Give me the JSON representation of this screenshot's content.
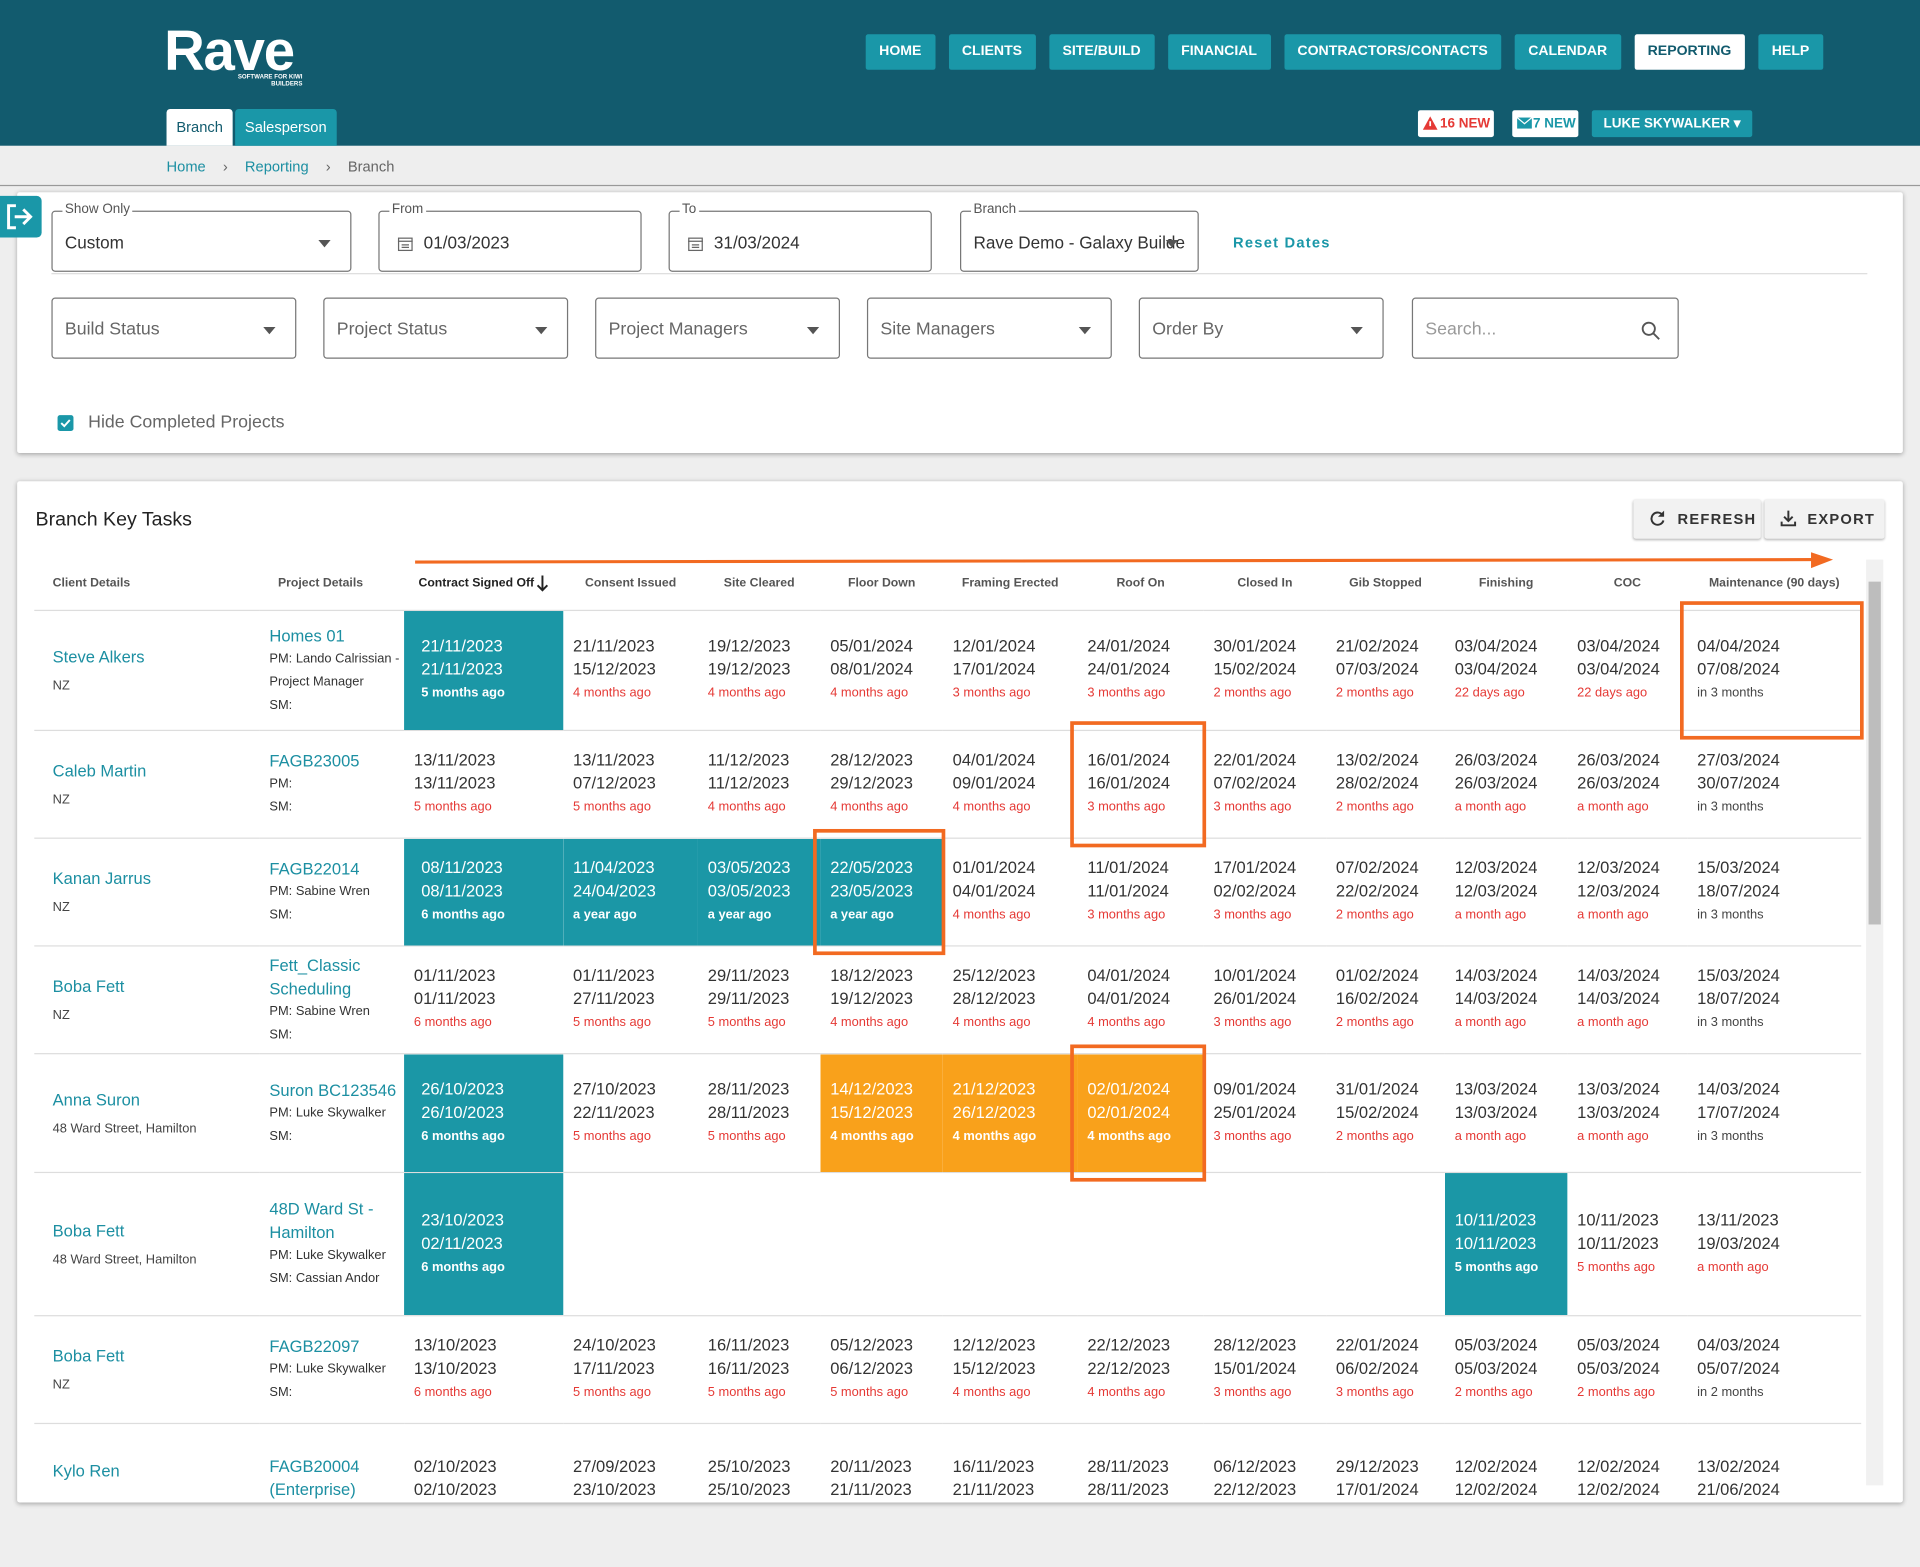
{
  "header": {
    "logo": "Rave",
    "tagline": "SOFTWARE FOR KIWI BUILDERS",
    "nav": [
      "HOME",
      "CLIENTS",
      "SITE/BUILD",
      "FINANCIAL",
      "CONTRACTORS/CONTACTS",
      "CALENDAR",
      "REPORTING",
      "HELP"
    ],
    "active_nav": 6,
    "tabs": [
      "Branch",
      "Salesperson"
    ],
    "active_tab": 0,
    "alerts": "16 NEW",
    "messages": "7 NEW",
    "user": "LUKE SKYWALKER"
  },
  "breadcrumb": [
    "Home",
    "Reporting",
    "Branch"
  ],
  "filters": {
    "show_only": {
      "label": "Show Only",
      "value": "Custom"
    },
    "from": {
      "label": "From",
      "value": "01/03/2023"
    },
    "to": {
      "label": "To",
      "value": "31/03/2024"
    },
    "branch": {
      "label": "Branch",
      "value": "Rave Demo - Galaxy Builde"
    },
    "reset": "Reset Dates",
    "selects": [
      "Build Status",
      "Project Status",
      "Project Managers",
      "Site Managers",
      "Order By"
    ],
    "search": "Search...",
    "hide_completed": "Hide Completed Projects"
  },
  "panel": {
    "title": "Branch Key Tasks",
    "buttons": [
      "REFRESH",
      "EXPORT"
    ]
  },
  "table": {
    "columns": [
      "Client Details",
      "Project Details",
      "Contract Signed Off",
      "Consent Issued",
      "Site Cleared",
      "Floor Down",
      "Framing Erected",
      "Roof On",
      "Closed In",
      "Gib Stopped",
      "Finishing",
      "COC",
      "Maintenance (90 days)"
    ],
    "sorted_column": 2,
    "rows": [
      {
        "client": "Steve Alkers",
        "location": "NZ",
        "project": "Homes 01",
        "details": [
          "PM: Lando Calrissian - Project Manager",
          "SM:"
        ],
        "cells": [
          {
            "dates": [
              "21/11/2023",
              "21/11/2023"
            ],
            "ago": "5 months ago",
            "state": "done"
          },
          {
            "dates": [
              "21/11/2023",
              "15/12/2023"
            ],
            "ago": "4 months ago",
            "state": "late"
          },
          {
            "dates": [
              "19/12/2023",
              "19/12/2023"
            ],
            "ago": "4 months ago",
            "state": "late"
          },
          {
            "dates": [
              "05/01/2024",
              "08/01/2024"
            ],
            "ago": "4 months ago",
            "state": "late"
          },
          {
            "dates": [
              "12/01/2024",
              "17/01/2024"
            ],
            "ago": "3 months ago",
            "state": "late"
          },
          {
            "dates": [
              "24/01/2024",
              "24/01/2024"
            ],
            "ago": "3 months ago",
            "state": "late"
          },
          {
            "dates": [
              "30/01/2024",
              "15/02/2024"
            ],
            "ago": "2 months ago",
            "state": "late"
          },
          {
            "dates": [
              "21/02/2024",
              "07/03/2024"
            ],
            "ago": "2 months ago",
            "state": "late"
          },
          {
            "dates": [
              "03/04/2024",
              "03/04/2024"
            ],
            "ago": "22 days ago",
            "state": "late"
          },
          {
            "dates": [
              "03/04/2024",
              "03/04/2024"
            ],
            "ago": "22 days ago",
            "state": "late"
          },
          {
            "dates": [
              "04/04/2024",
              "07/08/2024"
            ],
            "ago": "in 3 months",
            "state": "future",
            "highlight": true
          }
        ]
      },
      {
        "client": "Caleb Martin",
        "location": "NZ",
        "project": "FAGB23005",
        "details": [
          "PM:",
          "SM:"
        ],
        "cells": [
          {
            "dates": [
              "13/11/2023",
              "13/11/2023"
            ],
            "ago": "5 months ago",
            "state": "late"
          },
          {
            "dates": [
              "13/11/2023",
              "07/12/2023"
            ],
            "ago": "5 months ago",
            "state": "late"
          },
          {
            "dates": [
              "11/12/2023",
              "11/12/2023"
            ],
            "ago": "4 months ago",
            "state": "late"
          },
          {
            "dates": [
              "28/12/2023",
              "29/12/2023"
            ],
            "ago": "4 months ago",
            "state": "late"
          },
          {
            "dates": [
              "04/01/2024",
              "09/01/2024"
            ],
            "ago": "4 months ago",
            "state": "late"
          },
          {
            "dates": [
              "16/01/2024",
              "16/01/2024"
            ],
            "ago": "3 months ago",
            "state": "late",
            "highlight": true
          },
          {
            "dates": [
              "22/01/2024",
              "07/02/2024"
            ],
            "ago": "3 months ago",
            "state": "late"
          },
          {
            "dates": [
              "13/02/2024",
              "28/02/2024"
            ],
            "ago": "2 months ago",
            "state": "late"
          },
          {
            "dates": [
              "26/03/2024",
              "26/03/2024"
            ],
            "ago": "a month ago",
            "state": "late"
          },
          {
            "dates": [
              "26/03/2024",
              "26/03/2024"
            ],
            "ago": "a month ago",
            "state": "late"
          },
          {
            "dates": [
              "27/03/2024",
              "30/07/2024"
            ],
            "ago": "in 3 months",
            "state": "future"
          }
        ]
      },
      {
        "client": "Kanan Jarrus",
        "location": "NZ",
        "project": "FAGB22014",
        "details": [
          "PM: Sabine Wren",
          "SM:"
        ],
        "cells": [
          {
            "dates": [
              "08/11/2023",
              "08/11/2023"
            ],
            "ago": "6 months ago",
            "state": "done"
          },
          {
            "dates": [
              "11/04/2023",
              "24/04/2023"
            ],
            "ago": "a year ago",
            "state": "done"
          },
          {
            "dates": [
              "03/05/2023",
              "03/05/2023"
            ],
            "ago": "a year ago",
            "state": "done"
          },
          {
            "dates": [
              "22/05/2023",
              "23/05/2023"
            ],
            "ago": "a year ago",
            "state": "done",
            "highlight": true
          },
          {
            "dates": [
              "01/01/2024",
              "04/01/2024"
            ],
            "ago": "4 months ago",
            "state": "late"
          },
          {
            "dates": [
              "11/01/2024",
              "11/01/2024"
            ],
            "ago": "3 months ago",
            "state": "late"
          },
          {
            "dates": [
              "17/01/2024",
              "02/02/2024"
            ],
            "ago": "3 months ago",
            "state": "late"
          },
          {
            "dates": [
              "07/02/2024",
              "22/02/2024"
            ],
            "ago": "2 months ago",
            "state": "late"
          },
          {
            "dates": [
              "12/03/2024",
              "12/03/2024"
            ],
            "ago": "a month ago",
            "state": "late"
          },
          {
            "dates": [
              "12/03/2024",
              "12/03/2024"
            ],
            "ago": "a month ago",
            "state": "late"
          },
          {
            "dates": [
              "15/03/2024",
              "18/07/2024"
            ],
            "ago": "in 3 months",
            "state": "future"
          }
        ]
      },
      {
        "client": "Boba Fett",
        "location": "NZ",
        "project": "Fett_Classic Scheduling",
        "details": [
          "PM: Sabine Wren",
          "SM:"
        ],
        "cells": [
          {
            "dates": [
              "01/11/2023",
              "01/11/2023"
            ],
            "ago": "6 months ago",
            "state": "late"
          },
          {
            "dates": [
              "01/11/2023",
              "27/11/2023"
            ],
            "ago": "5 months ago",
            "state": "late"
          },
          {
            "dates": [
              "29/11/2023",
              "29/11/2023"
            ],
            "ago": "5 months ago",
            "state": "late"
          },
          {
            "dates": [
              "18/12/2023",
              "19/12/2023"
            ],
            "ago": "4 months ago",
            "state": "late"
          },
          {
            "dates": [
              "25/12/2023",
              "28/12/2023"
            ],
            "ago": "4 months ago",
            "state": "late"
          },
          {
            "dates": [
              "04/01/2024",
              "04/01/2024"
            ],
            "ago": "4 months ago",
            "state": "late"
          },
          {
            "dates": [
              "10/01/2024",
              "26/01/2024"
            ],
            "ago": "3 months ago",
            "state": "late"
          },
          {
            "dates": [
              "01/02/2024",
              "16/02/2024"
            ],
            "ago": "2 months ago",
            "state": "late"
          },
          {
            "dates": [
              "14/03/2024",
              "14/03/2024"
            ],
            "ago": "a month ago",
            "state": "late"
          },
          {
            "dates": [
              "14/03/2024",
              "14/03/2024"
            ],
            "ago": "a month ago",
            "state": "late"
          },
          {
            "dates": [
              "15/03/2024",
              "18/07/2024"
            ],
            "ago": "in 3 months",
            "state": "future"
          }
        ]
      },
      {
        "client": "Anna Suron",
        "location": "48 Ward Street, Hamilton",
        "project": "Suron BC123546",
        "details": [
          "PM: Luke Skywalker",
          "SM:"
        ],
        "cells": [
          {
            "dates": [
              "26/10/2023",
              "26/10/2023"
            ],
            "ago": "6 months ago",
            "state": "done"
          },
          {
            "dates": [
              "27/10/2023",
              "22/11/2023"
            ],
            "ago": "5 months ago",
            "state": "late"
          },
          {
            "dates": [
              "28/11/2023",
              "28/11/2023"
            ],
            "ago": "5 months ago",
            "state": "late"
          },
          {
            "dates": [
              "14/12/2023",
              "15/12/2023"
            ],
            "ago": "4 months ago",
            "state": "warn"
          },
          {
            "dates": [
              "21/12/2023",
              "26/12/2023"
            ],
            "ago": "4 months ago",
            "state": "warn"
          },
          {
            "dates": [
              "02/01/2024",
              "02/01/2024"
            ],
            "ago": "4 months ago",
            "state": "warn",
            "highlight": true
          },
          {
            "dates": [
              "09/01/2024",
              "25/01/2024"
            ],
            "ago": "3 months ago",
            "state": "late"
          },
          {
            "dates": [
              "31/01/2024",
              "15/02/2024"
            ],
            "ago": "2 months ago",
            "state": "late"
          },
          {
            "dates": [
              "13/03/2024",
              "13/03/2024"
            ],
            "ago": "a month ago",
            "state": "late"
          },
          {
            "dates": [
              "13/03/2024",
              "13/03/2024"
            ],
            "ago": "a month ago",
            "state": "late"
          },
          {
            "dates": [
              "14/03/2024",
              "17/07/2024"
            ],
            "ago": "in 3 months",
            "state": "future"
          }
        ]
      },
      {
        "client": "Boba Fett",
        "location": "48 Ward Street, Hamilton",
        "project": "48D Ward St - Hamilton",
        "details": [
          "PM: Luke Skywalker",
          "SM: Cassian Andor"
        ],
        "cells": [
          {
            "dates": [
              "23/10/2023",
              "02/11/2023"
            ],
            "ago": "6 months ago",
            "state": "done"
          },
          null,
          null,
          null,
          null,
          null,
          null,
          null,
          {
            "dates": [
              "10/11/2023",
              "10/11/2023"
            ],
            "ago": "5 months ago",
            "state": "done"
          },
          {
            "dates": [
              "10/11/2023",
              "10/11/2023"
            ],
            "ago": "5 months ago",
            "state": "late"
          },
          {
            "dates": [
              "13/11/2023",
              "19/03/2024"
            ],
            "ago": "a month ago",
            "state": "late"
          }
        ]
      },
      {
        "client": "Boba Fett",
        "location": "NZ",
        "project": "FAGB22097",
        "details": [
          "PM: Luke Skywalker",
          "SM:"
        ],
        "cells": [
          {
            "dates": [
              "13/10/2023",
              "13/10/2023"
            ],
            "ago": "6 months ago",
            "state": "late"
          },
          {
            "dates": [
              "24/10/2023",
              "17/11/2023"
            ],
            "ago": "5 months ago",
            "state": "late"
          },
          {
            "dates": [
              "16/11/2023",
              "16/11/2023"
            ],
            "ago": "5 months ago",
            "state": "late"
          },
          {
            "dates": [
              "05/12/2023",
              "06/12/2023"
            ],
            "ago": "5 months ago",
            "state": "late"
          },
          {
            "dates": [
              "12/12/2023",
              "15/12/2023"
            ],
            "ago": "4 months ago",
            "state": "late"
          },
          {
            "dates": [
              "22/12/2023",
              "22/12/2023"
            ],
            "ago": "4 months ago",
            "state": "late"
          },
          {
            "dates": [
              "28/12/2023",
              "15/01/2024"
            ],
            "ago": "3 months ago",
            "state": "late"
          },
          {
            "dates": [
              "22/01/2024",
              "06/02/2024"
            ],
            "ago": "3 months ago",
            "state": "late"
          },
          {
            "dates": [
              "05/03/2024",
              "05/03/2024"
            ],
            "ago": "2 months ago",
            "state": "late"
          },
          {
            "dates": [
              "05/03/2024",
              "05/03/2024"
            ],
            "ago": "2 months ago",
            "state": "late"
          },
          {
            "dates": [
              "04/03/2024",
              "05/07/2024"
            ],
            "ago": "in 2 months",
            "state": "future"
          }
        ]
      },
      {
        "client": "Kylo Ren",
        "project": "FAGB20004 (Enterprise)",
        "details": [],
        "cells": [
          {
            "dates": [
              "02/10/2023",
              "02/10/2023"
            ]
          },
          {
            "dates": [
              "27/09/2023",
              "23/10/2023"
            ]
          },
          {
            "dates": [
              "25/10/2023",
              "25/10/2023"
            ]
          },
          {
            "dates": [
              "20/11/2023",
              "21/11/2023"
            ]
          },
          {
            "dates": [
              "16/11/2023",
              "21/11/2023"
            ]
          },
          {
            "dates": [
              "28/11/2023",
              "28/11/2023"
            ]
          },
          {
            "dates": [
              "06/12/2023",
              "22/12/2023"
            ]
          },
          {
            "dates": [
              "29/12/2023",
              "17/01/2024"
            ]
          },
          {
            "dates": [
              "12/02/2024",
              "12/02/2024"
            ]
          },
          {
            "dates": [
              "12/02/2024",
              "12/02/2024"
            ]
          },
          {
            "dates": [
              "13/02/2024",
              "21/06/2024"
            ]
          }
        ]
      }
    ]
  }
}
